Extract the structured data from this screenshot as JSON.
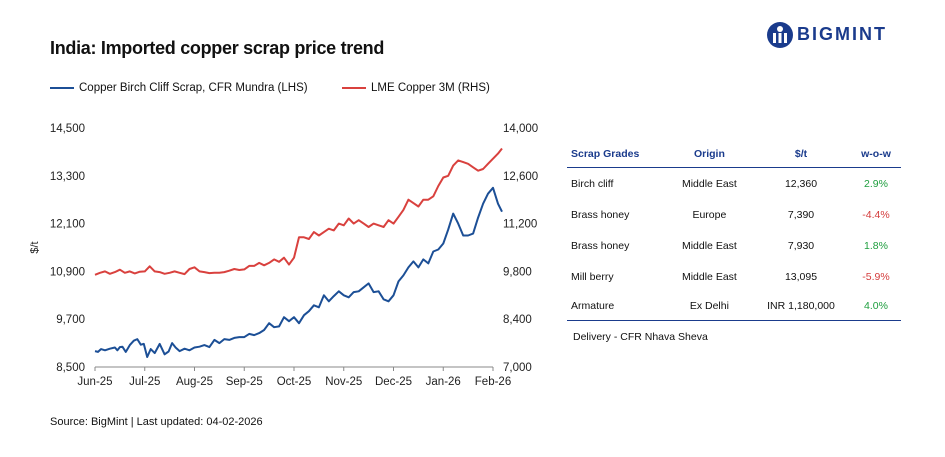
{
  "title": "India: Imported copper scrap price trend",
  "brand": {
    "name": "BIGMINT",
    "color": "#1a3b8c"
  },
  "legend": [
    {
      "label": "Copper Birch Cliff Scrap, CFR Mundra (LHS)",
      "color": "#1c4f96"
    },
    {
      "label": "LME Copper 3M (RHS)",
      "color": "#d9413e"
    }
  ],
  "chart_data": {
    "type": "line",
    "ylabel": "$/t",
    "x_ticks": [
      "Jun-25",
      "Jul-25",
      "Aug-25",
      "Sep-25",
      "Oct-25",
      "Nov-25",
      "Dec-25",
      "Jan-26",
      "Feb-26"
    ],
    "y_left": {
      "min": 8500,
      "max": 14500,
      "ticks": [
        "8,500",
        "9,700",
        "10,900",
        "12,100",
        "13,300",
        "14,500"
      ]
    },
    "y_right": {
      "min": 7000,
      "max": 14000,
      "ticks": [
        "7,000",
        "8,400",
        "9,800",
        "11,200",
        "12,600",
        "14,000"
      ]
    },
    "series": [
      {
        "name": "Copper Birch Cliff Scrap, CFR Mundra (LHS)",
        "axis": "left",
        "color": "#1c4f96",
        "x": [
          0,
          0.06,
          0.12,
          0.2,
          0.3,
          0.4,
          0.45,
          0.5,
          0.55,
          0.62,
          0.7,
          0.78,
          0.85,
          0.92,
          0.98,
          1.05,
          1.12,
          1.2,
          1.3,
          1.4,
          1.48,
          1.55,
          1.62,
          1.7,
          1.8,
          1.9,
          2.0,
          2.1,
          2.2,
          2.3,
          2.4,
          2.5,
          2.6,
          2.7,
          2.8,
          2.9,
          3.0,
          3.1,
          3.2,
          3.3,
          3.4,
          3.5,
          3.6,
          3.7,
          3.8,
          3.9,
          4.0,
          4.1,
          4.2,
          4.3,
          4.4,
          4.5,
          4.6,
          4.7,
          4.8,
          4.9,
          5.0,
          5.1,
          5.2,
          5.3,
          5.4,
          5.5,
          5.6,
          5.7,
          5.8,
          5.9,
          6.0,
          6.1,
          6.2,
          6.3,
          6.4,
          6.5,
          6.6,
          6.7,
          6.8,
          6.9,
          7.0,
          7.1,
          7.2,
          7.3,
          7.4,
          7.5,
          7.6,
          7.7,
          7.8,
          7.9,
          8.0,
          8.1,
          8.18
        ],
        "values": [
          8900,
          8880,
          8950,
          8920,
          8960,
          8990,
          8920,
          9000,
          9010,
          8880,
          9050,
          9160,
          9200,
          9060,
          9080,
          8750,
          8950,
          8850,
          9080,
          8820,
          8890,
          9100,
          8990,
          8900,
          8960,
          8920,
          8990,
          9010,
          9050,
          9000,
          9180,
          9100,
          9200,
          9180,
          9230,
          9250,
          9250,
          9330,
          9300,
          9350,
          9430,
          9600,
          9500,
          9520,
          9750,
          9650,
          9750,
          9600,
          9800,
          9900,
          10050,
          10000,
          10300,
          10150,
          10280,
          10400,
          10300,
          10250,
          10380,
          10400,
          10500,
          10600,
          10380,
          10400,
          10200,
          10150,
          10300,
          10650,
          10800,
          11000,
          11150,
          11000,
          11200,
          11100,
          11400,
          11450,
          11600,
          11950,
          12350,
          12100,
          11800,
          11800,
          11850,
          12250,
          12600,
          12850,
          13000,
          12600,
          12400
        ]
      },
      {
        "name": "LME Copper 3M (RHS)",
        "axis": "right",
        "color": "#d9413e",
        "x": [
          0,
          0.1,
          0.2,
          0.3,
          0.4,
          0.5,
          0.6,
          0.7,
          0.8,
          0.9,
          1.0,
          1.1,
          1.2,
          1.3,
          1.4,
          1.5,
          1.6,
          1.7,
          1.8,
          1.9,
          2.0,
          2.1,
          2.2,
          2.3,
          2.4,
          2.5,
          2.6,
          2.7,
          2.8,
          2.9,
          3.0,
          3.1,
          3.2,
          3.3,
          3.4,
          3.5,
          3.6,
          3.7,
          3.8,
          3.9,
          4.0,
          4.1,
          4.2,
          4.3,
          4.4,
          4.5,
          4.6,
          4.7,
          4.8,
          4.9,
          5.0,
          5.1,
          5.2,
          5.3,
          5.4,
          5.5,
          5.6,
          5.7,
          5.8,
          5.9,
          6.0,
          6.1,
          6.2,
          6.3,
          6.4,
          6.5,
          6.6,
          6.7,
          6.8,
          6.9,
          7.0,
          7.1,
          7.2,
          7.3,
          7.4,
          7.5,
          7.6,
          7.7,
          7.8,
          7.9,
          8.0,
          8.1,
          8.18
        ],
        "values": [
          9700,
          9760,
          9800,
          9730,
          9780,
          9850,
          9760,
          9800,
          9740,
          9790,
          9800,
          9950,
          9800,
          9780,
          9730,
          9760,
          9800,
          9760,
          9720,
          9870,
          9920,
          9800,
          9780,
          9750,
          9760,
          9760,
          9780,
          9820,
          9870,
          9840,
          9860,
          9960,
          9960,
          10050,
          9980,
          10050,
          10150,
          10080,
          10200,
          10000,
          10200,
          10800,
          10800,
          10750,
          10950,
          10850,
          10950,
          11050,
          11000,
          11200,
          11150,
          11350,
          11200,
          11300,
          11200,
          11100,
          11200,
          11150,
          11100,
          11300,
          11200,
          11400,
          11600,
          11900,
          11800,
          11700,
          11900,
          11900,
          12000,
          12300,
          12550,
          12600,
          12900,
          13050,
          13000,
          12950,
          12850,
          12750,
          12800,
          12950,
          13100,
          13250,
          13400
        ]
      }
    ]
  },
  "table": {
    "headers": [
      "Scrap Grades",
      "Origin",
      "$/t",
      "w-o-w"
    ],
    "rows": [
      {
        "grade": "Birch cliff",
        "origin": "Middle East",
        "price": "12,360",
        "wow": "2.9%",
        "dir": "pos"
      },
      {
        "grade": "Brass honey",
        "origin": "Europe",
        "price": "7,390",
        "wow": "-4.4%",
        "dir": "neg"
      },
      {
        "grade": "Brass honey",
        "origin": "Middle East",
        "price": "7,930",
        "wow": "1.8%",
        "dir": "pos"
      },
      {
        "grade": "Mill berry",
        "origin": "Middle East",
        "price": "13,095",
        "wow": "-5.9%",
        "dir": "neg"
      },
      {
        "grade": "Armature",
        "origin": "Ex Delhi",
        "price": "INR 1,180,000",
        "wow": "4.0%",
        "dir": "pos"
      }
    ],
    "delivery": "Delivery - CFR Nhava Sheva"
  },
  "source": "Source: BigMint | Last updated: 04-02-2026"
}
